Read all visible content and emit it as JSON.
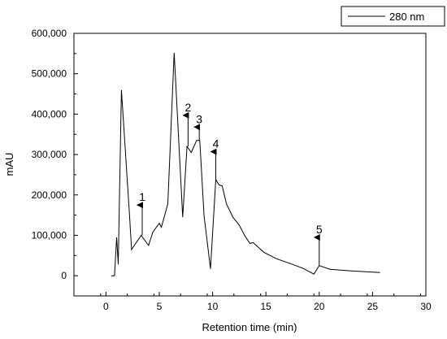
{
  "chart_data": {
    "type": "line",
    "title": "",
    "xlabel": "Retention time (min)",
    "ylabel": "mAU",
    "xlim": [
      -3,
      30
    ],
    "ylim": [
      -50000,
      600000
    ],
    "x_ticks": [
      0,
      5,
      10,
      15,
      20,
      25,
      30
    ],
    "x_tick_labels": [
      "0",
      "5",
      "10",
      "15",
      "20",
      "25",
      "30"
    ],
    "y_ticks": [
      0,
      100000,
      200000,
      300000,
      400000,
      500000,
      600000
    ],
    "y_tick_labels": [
      "0",
      "100,000",
      "200,000",
      "300,000",
      "400,000",
      "500,000",
      "600,000"
    ],
    "legend": {
      "position": "top-right",
      "entries": [
        "280 nm"
      ]
    },
    "series": [
      {
        "name": "280 nm",
        "color": "#000000",
        "points": [
          [
            0.5,
            0
          ],
          [
            0.8,
            0
          ],
          [
            1.0,
            95000
          ],
          [
            1.15,
            28000
          ],
          [
            1.45,
            460000
          ],
          [
            2.2,
            155000
          ],
          [
            2.4,
            65000
          ],
          [
            3.3,
            100000
          ],
          [
            4.0,
            75000
          ],
          [
            4.4,
            108000
          ],
          [
            5.0,
            130000
          ],
          [
            5.2,
            120000
          ],
          [
            5.8,
            178000
          ],
          [
            6.4,
            552000
          ],
          [
            7.2,
            145000
          ],
          [
            7.6,
            320000
          ],
          [
            8.0,
            305000
          ],
          [
            8.5,
            335000
          ],
          [
            8.8,
            335000
          ],
          [
            9.2,
            148000
          ],
          [
            9.8,
            17000
          ],
          [
            10.3,
            238000
          ],
          [
            10.6,
            225000
          ],
          [
            10.9,
            222000
          ],
          [
            11.3,
            178000
          ],
          [
            11.9,
            145000
          ],
          [
            12.5,
            125000
          ],
          [
            13.0,
            100000
          ],
          [
            13.5,
            80000
          ],
          [
            13.8,
            82000
          ],
          [
            14.8,
            58000
          ],
          [
            16.0,
            42000
          ],
          [
            17.5,
            28000
          ],
          [
            18.5,
            18000
          ],
          [
            19.5,
            4000
          ],
          [
            20.0,
            25000
          ],
          [
            21.0,
            16000
          ],
          [
            23.0,
            12000
          ],
          [
            25.7,
            8000
          ]
        ]
      }
    ],
    "annotations": [
      {
        "label": "1",
        "x": 3.4,
        "y_start": 100000,
        "y_end": 175000
      },
      {
        "label": "2",
        "x": 7.7,
        "y_start": 320000,
        "y_end": 397000
      },
      {
        "label": "3",
        "x": 8.75,
        "y_start": 335000,
        "y_end": 368000
      },
      {
        "label": "4",
        "x": 10.3,
        "y_start": 238000,
        "y_end": 307000
      },
      {
        "label": "5",
        "x": 20.0,
        "y_start": 25000,
        "y_end": 95000
      }
    ]
  }
}
